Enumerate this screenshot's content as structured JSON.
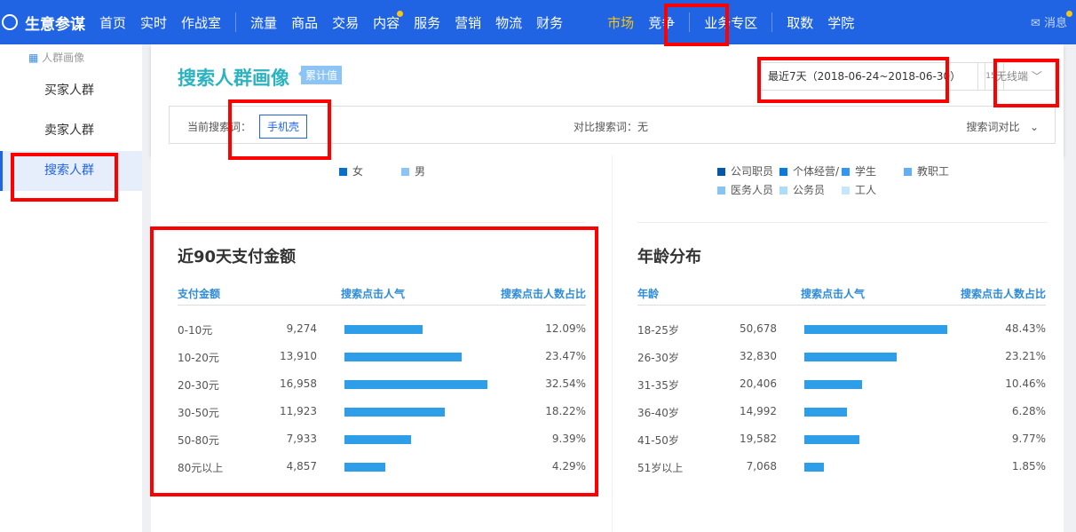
{
  "nav": {
    "brand": "生意参谋",
    "items": [
      {
        "label": "首页"
      },
      {
        "label": "实时"
      },
      {
        "label": "作战室"
      },
      {
        "sep": true
      },
      {
        "label": "流量"
      },
      {
        "label": "商品"
      },
      {
        "label": "交易"
      },
      {
        "label": "内容",
        "dot": true
      },
      {
        "label": "服务"
      },
      {
        "label": "营销"
      },
      {
        "label": "物流"
      },
      {
        "label": "财务"
      },
      {
        "label": "市场",
        "active": true
      },
      {
        "label": "竞争"
      },
      {
        "sep": true
      },
      {
        "label": "业务专区"
      },
      {
        "sep": true
      },
      {
        "label": "取数"
      },
      {
        "label": "学院"
      }
    ],
    "messages": "消息"
  },
  "sidebar": {
    "section": "人群画像",
    "items": [
      "买家人群",
      "卖家人群",
      "搜索人群"
    ],
    "selected": "搜索人群"
  },
  "header": {
    "title": "搜索人群画像",
    "badge": "累计值",
    "date_range": "最近7天（2018-06-24~2018-06-30）",
    "calendar_day": "15",
    "device": "无线端"
  },
  "search": {
    "current_label": "当前搜索词：",
    "keyword": "手机壳",
    "compare_label": "对比搜索词：无",
    "compare_button": "搜索词对比"
  },
  "gender_legend": [
    {
      "label": "女",
      "color": "#0a6fc9"
    },
    {
      "label": "男",
      "color": "#8cc4f5"
    }
  ],
  "job_legend": [
    {
      "label": "公司职员",
      "color": "#0558a8"
    },
    {
      "label": "个体经营/",
      "color": "#0a7bd8"
    },
    {
      "label": "学生",
      "color": "#3496ee"
    },
    {
      "label": "教职工",
      "color": "#64aef2"
    },
    {
      "label": "医务人员",
      "color": "#86c5f3"
    },
    {
      "label": "公务员",
      "color": "#acdcfa"
    },
    {
      "label": "工人",
      "color": "#c7e6fb"
    }
  ],
  "payment": {
    "title": "近90天支付金额",
    "columns": [
      "支付金额",
      "搜索点击人气",
      "搜索点击人数占比"
    ],
    "rows": [
      [
        "0-10元",
        9274,
        "9,274",
        "12.09%"
      ],
      [
        "10-20元",
        13910,
        "13,910",
        "23.47%"
      ],
      [
        "20-30元",
        16958,
        "16,958",
        "32.54%"
      ],
      [
        "30-50元",
        11923,
        "11,923",
        "18.22%"
      ],
      [
        "50-80元",
        7933,
        "7,933",
        "9.39%"
      ],
      [
        "80元以上",
        4857,
        "4,857",
        "4.29%"
      ]
    ]
  },
  "age": {
    "title": "年龄分布",
    "columns": [
      "年龄",
      "搜索点击人气",
      "搜索点击人数占比"
    ],
    "rows": [
      [
        "18-25岁",
        50678,
        "50,678",
        "48.43%"
      ],
      [
        "26-30岁",
        32830,
        "32,830",
        "23.21%"
      ],
      [
        "31-35岁",
        20406,
        "20,406",
        "10.46%"
      ],
      [
        "36-40岁",
        14992,
        "14,992",
        "6.28%"
      ],
      [
        "41-50岁",
        19582,
        "19,582",
        "9.77%"
      ],
      [
        "51岁以上",
        7068,
        "7,068",
        "1.85%"
      ]
    ]
  },
  "colors": {
    "nav": "#2064e3",
    "accent": "#f5c518",
    "bar": "#2e9ee8",
    "title": "#2bb3c0",
    "highlight": "#ff0000"
  }
}
